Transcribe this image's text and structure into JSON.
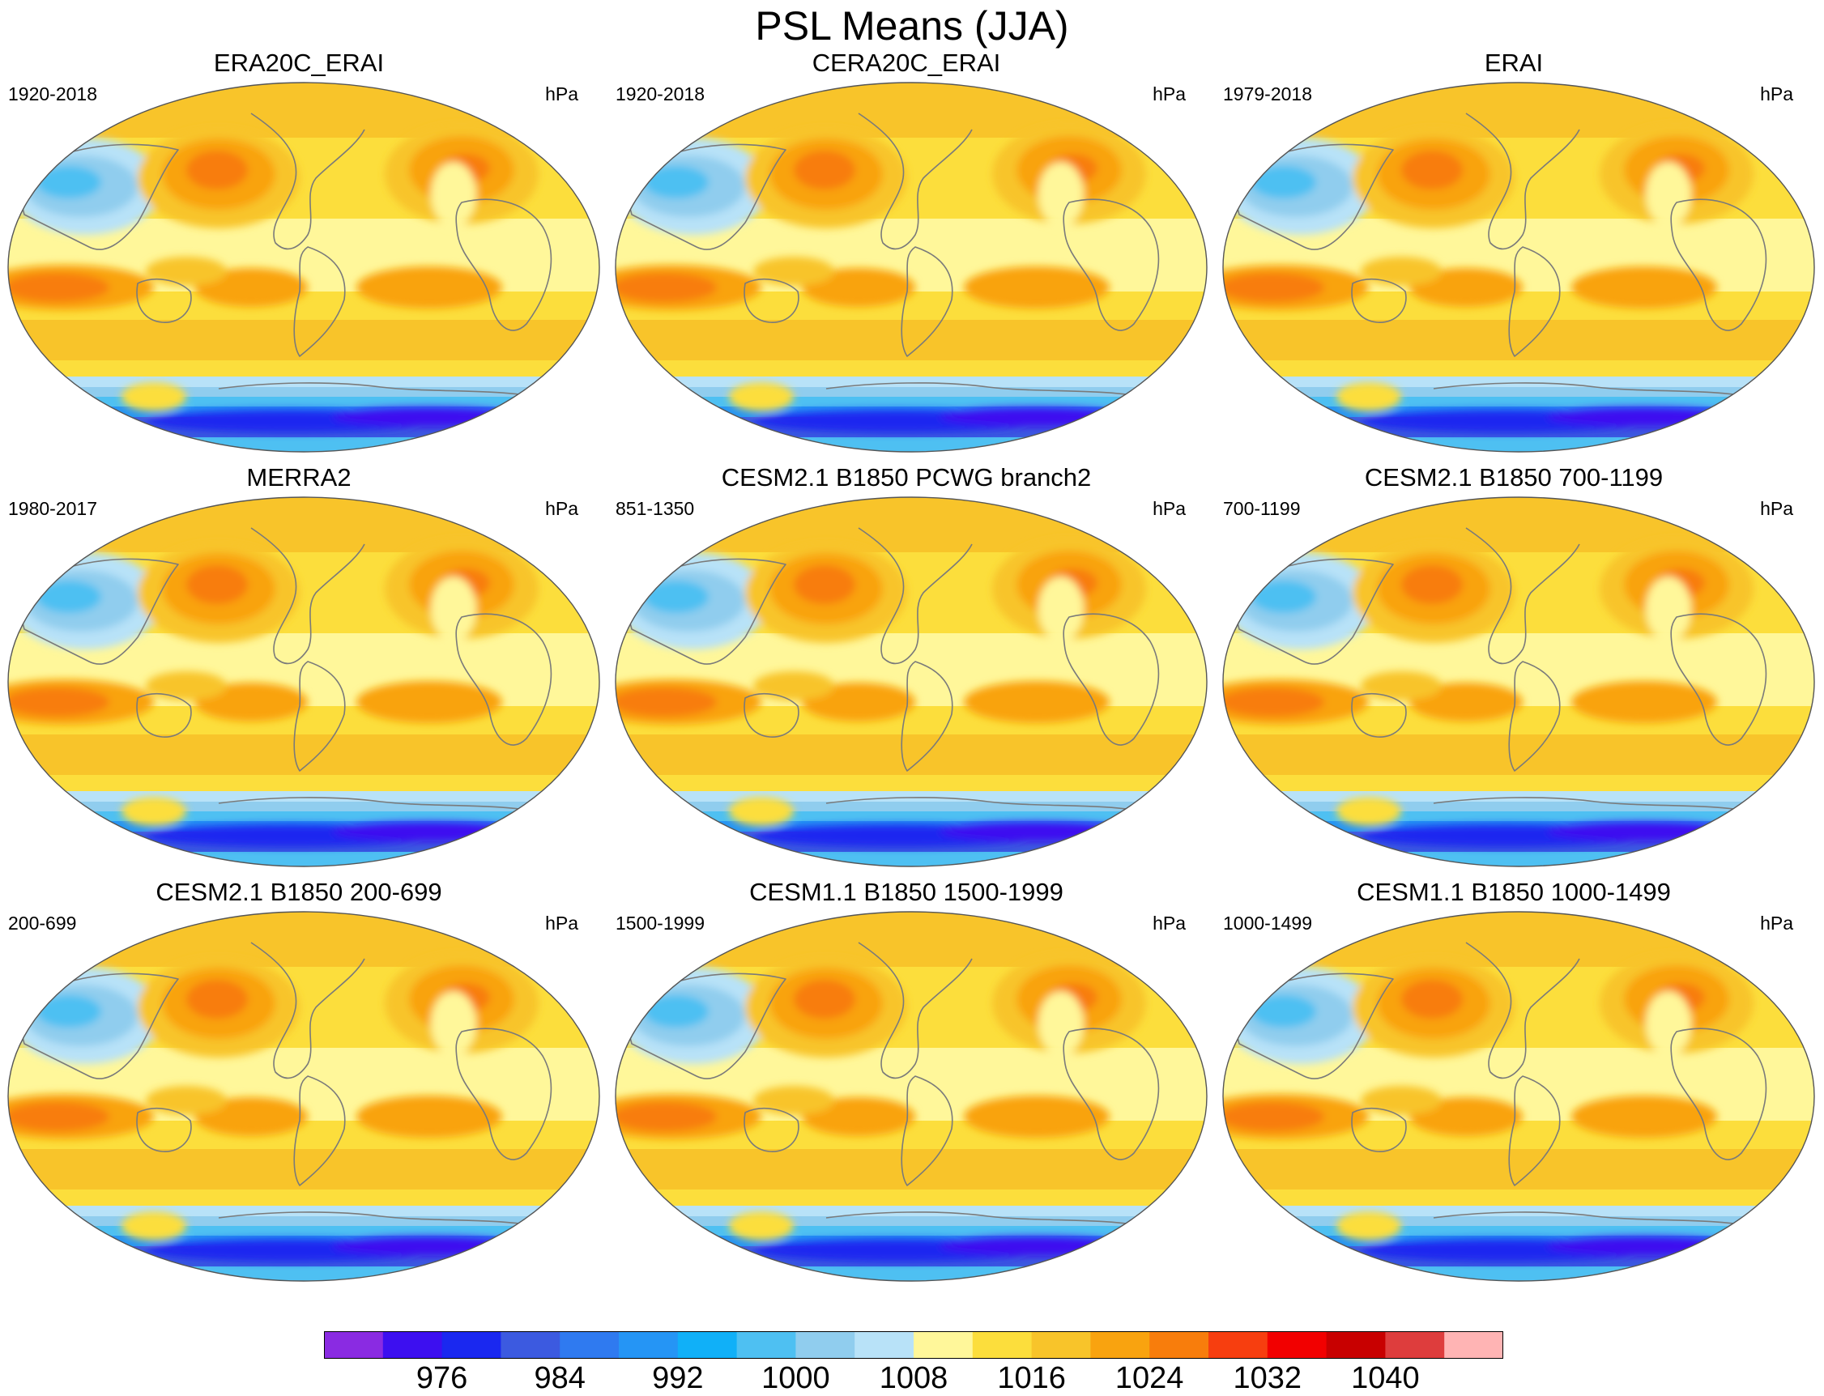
{
  "title": "PSL Means (JJA)",
  "units": "hPa",
  "panels": [
    {
      "title": "ERA20C_ERAI",
      "period": "1920-2018",
      "units": "hPa"
    },
    {
      "title": "CERA20C_ERAI",
      "period": "1920-2018",
      "units": "hPa"
    },
    {
      "title": "ERAI",
      "period": "1979-2018",
      "units": "hPa"
    },
    {
      "title": "MERRA2",
      "period": "1980-2017",
      "units": "hPa"
    },
    {
      "title": "CESM2.1 B1850 PCWG branch2",
      "period": "851-1350",
      "units": "hPa"
    },
    {
      "title": "CESM2.1 B1850 700-1199",
      "period": "700-1199",
      "units": "hPa"
    },
    {
      "title": "CESM2.1 B1850 200-699",
      "period": "200-699",
      "units": "hPa"
    },
    {
      "title": "CESM1.1 B1850 1500-1999",
      "period": "1500-1999",
      "units": "hPa"
    },
    {
      "title": "CESM1.1 B1850 1000-1499",
      "period": "1000-1499",
      "units": "hPa"
    }
  ],
  "colorbar": {
    "colors": [
      "#8a2be2",
      "#3d0ff0",
      "#1a28f0",
      "#3c5ae0",
      "#2f7af0",
      "#2595f5",
      "#10b0f8",
      "#4ec0f2",
      "#90cdee",
      "#b8e2f8",
      "#fff79a",
      "#fcde3c",
      "#f8c42a",
      "#f9a30f",
      "#f87d0c",
      "#f73e0f",
      "#f20000",
      "#c80000",
      "#de3d3d",
      "#ffb4b4"
    ],
    "labels": [
      "976",
      "984",
      "992",
      "1000",
      "1008",
      "1016",
      "1024",
      "1032",
      "1040"
    ]
  }
}
